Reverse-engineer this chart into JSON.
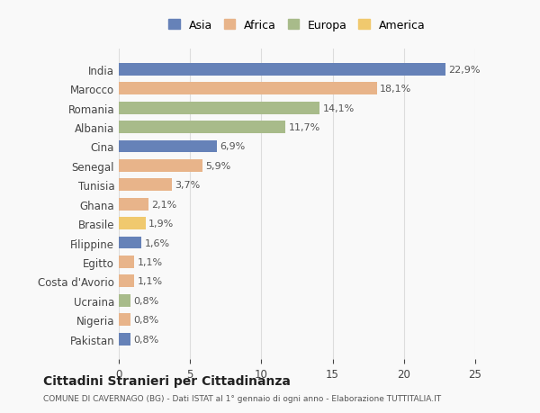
{
  "countries": [
    "India",
    "Marocco",
    "Romania",
    "Albania",
    "Cina",
    "Senegal",
    "Tunisia",
    "Ghana",
    "Brasile",
    "Filippine",
    "Egitto",
    "Costa d'Avorio",
    "Ucraina",
    "Nigeria",
    "Pakistan"
  ],
  "values": [
    22.9,
    18.1,
    14.1,
    11.7,
    6.9,
    5.9,
    3.7,
    2.1,
    1.9,
    1.6,
    1.1,
    1.1,
    0.8,
    0.8,
    0.8
  ],
  "labels": [
    "22,9%",
    "18,1%",
    "14,1%",
    "11,7%",
    "6,9%",
    "5,9%",
    "3,7%",
    "2,1%",
    "1,9%",
    "1,6%",
    "1,1%",
    "1,1%",
    "0,8%",
    "0,8%",
    "0,8%"
  ],
  "continents": [
    "Asia",
    "Africa",
    "Europa",
    "Europa",
    "Asia",
    "Africa",
    "Africa",
    "Africa",
    "America",
    "Asia",
    "Africa",
    "Africa",
    "Europa",
    "Africa",
    "Asia"
  ],
  "colors": {
    "Asia": "#6682b8",
    "Africa": "#e8b48a",
    "Europa": "#a8bb8a",
    "America": "#f0c96e"
  },
  "legend_order": [
    "Asia",
    "Africa",
    "Europa",
    "America"
  ],
  "title": "Cittadini Stranieri per Cittadinanza",
  "subtitle": "COMUNE DI CAVERNAGO (BG) - Dati ISTAT al 1° gennaio di ogni anno - Elaborazione TUTTITALIA.IT",
  "xlim": [
    0,
    25
  ],
  "xticks": [
    0,
    5,
    10,
    15,
    20,
    25
  ],
  "background_color": "#f9f9f9",
  "bar_height": 0.65,
  "grid_color": "#dddddd"
}
